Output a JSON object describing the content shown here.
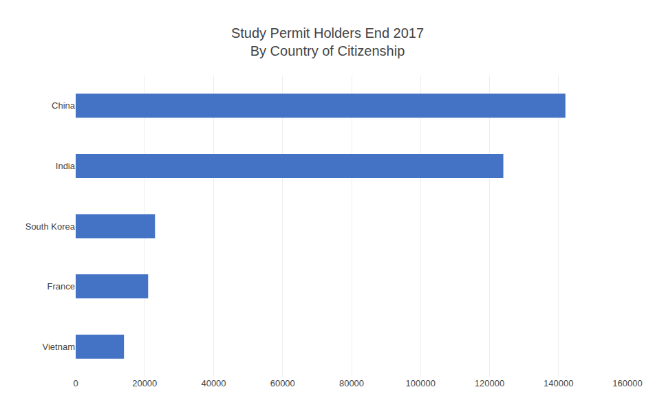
{
  "chart_data": {
    "type": "bar",
    "title": "Study Permit Holders End 2017\nBy Country of Citizenship",
    "categories": [
      "Vietnam",
      "France",
      "South Korea",
      "India",
      "China"
    ],
    "values": [
      14000,
      21000,
      23000,
      124000,
      142000
    ],
    "color": "#4472C4",
    "orientation": "horizontal",
    "xlim": [
      0,
      160000
    ],
    "xticks": [
      0,
      20000,
      40000,
      60000,
      80000,
      100000,
      120000,
      140000,
      160000
    ],
    "grid": true
  }
}
